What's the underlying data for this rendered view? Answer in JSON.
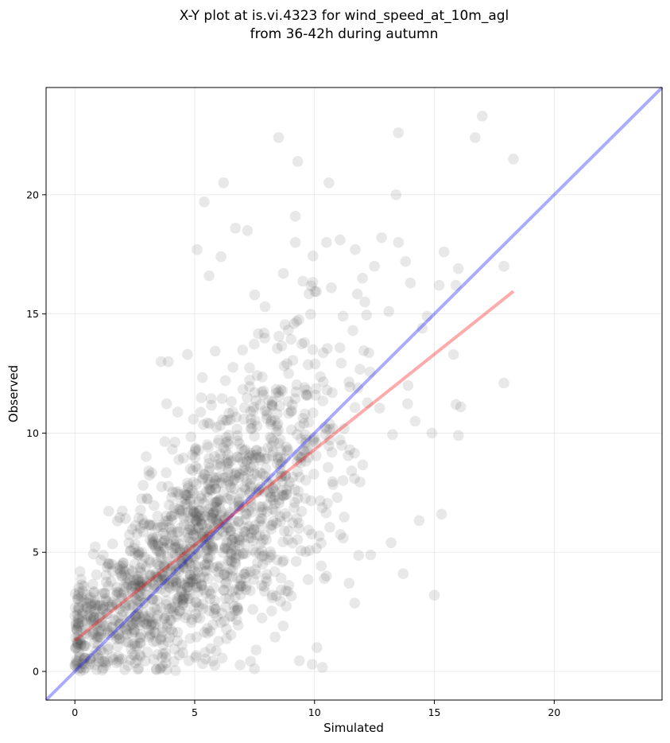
{
  "chart_data": {
    "type": "scatter",
    "title_lines": [
      "X-Y plot at is.vi.4323 for wind_speed_at_10m_agl",
      "from 36-42h during autumn"
    ],
    "xlabel": "Simulated",
    "ylabel": "Observed",
    "xlim": [
      -1.2,
      24.5
    ],
    "ylim": [
      -1.2,
      24.5
    ],
    "xticks": [
      0,
      5,
      10,
      15,
      20
    ],
    "yticks": [
      0,
      5,
      10,
      15,
      20
    ],
    "grid": true,
    "point_color": "#404040",
    "point_opacity": 0.12,
    "identity_line": {
      "color": "#0000ff",
      "opacity": 0.33,
      "from": [
        -1.2,
        -1.2
      ],
      "to": [
        24.5,
        24.5
      ]
    },
    "fit_line": {
      "color": "#ff0000",
      "opacity": 0.33,
      "from": [
        0,
        1.3
      ],
      "to": [
        18.3,
        15.95
      ]
    },
    "outlier_points": [
      [
        8.5,
        22.4
      ],
      [
        13.5,
        22.6
      ],
      [
        17.0,
        23.3
      ],
      [
        16.7,
        22.4
      ],
      [
        18.3,
        21.5
      ],
      [
        9.3,
        21.4
      ],
      [
        13.4,
        20.0
      ],
      [
        10.6,
        20.5
      ],
      [
        6.2,
        20.5
      ],
      [
        5.4,
        19.7
      ],
      [
        9.2,
        19.1
      ],
      [
        6.7,
        18.6
      ],
      [
        7.2,
        18.5
      ],
      [
        10.5,
        18.0
      ],
      [
        9.2,
        18.0
      ],
      [
        12.8,
        18.2
      ],
      [
        13.5,
        18.0
      ],
      [
        5.1,
        17.7
      ],
      [
        6.1,
        17.4
      ],
      [
        11.7,
        17.7
      ],
      [
        15.4,
        17.6
      ],
      [
        13.8,
        17.2
      ],
      [
        17.9,
        17.0
      ],
      [
        16.0,
        16.9
      ],
      [
        5.6,
        16.6
      ],
      [
        8.7,
        16.7
      ],
      [
        10.7,
        16.1
      ],
      [
        12.0,
        16.5
      ],
      [
        14.0,
        16.3
      ],
      [
        15.2,
        16.2
      ],
      [
        15.9,
        16.2
      ],
      [
        7.5,
        15.8
      ],
      [
        17.9,
        12.1
      ],
      [
        15.9,
        11.2
      ],
      [
        16.1,
        11.1
      ],
      [
        16.0,
        9.9
      ],
      [
        15.3,
        6.6
      ],
      [
        15.0,
        3.2
      ],
      [
        13.7,
        4.1
      ],
      [
        13.2,
        5.4
      ],
      [
        14.9,
        10.0
      ],
      [
        15.8,
        13.3
      ],
      [
        14.5,
        14.4
      ],
      [
        11.2,
        5.6
      ],
      [
        10.5,
        4.0
      ],
      [
        10.1,
        1.0
      ],
      [
        9.9,
        0.3
      ],
      [
        3.6,
        13.0
      ],
      [
        4.7,
        13.3
      ],
      [
        3.9,
        13.0
      ],
      [
        12.5,
        17.0
      ],
      [
        13.1,
        15.1
      ],
      [
        14.7,
        14.9
      ],
      [
        12.1,
        15.5
      ],
      [
        11.6,
        14.3
      ],
      [
        13.9,
        12.0
      ],
      [
        14.2,
        10.5
      ]
    ],
    "cluster_points": 1500,
    "cluster_seed": 4323
  }
}
